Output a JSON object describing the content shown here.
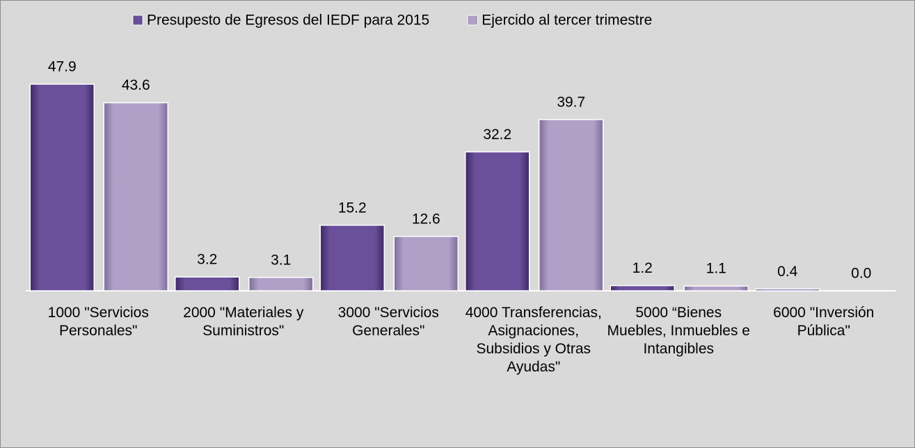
{
  "chart_data": {
    "type": "bar",
    "categories": [
      "1000 \"Servicios Personales\"",
      "2000 \"Materiales y Suministros\"",
      "3000 \"Servicios Generales\"",
      "4000 Transferencias, Asignaciones, Subsidios y Otras Ayudas\"",
      "5000 “Bienes Muebles, Inmuebles e Intangibles",
      "6000 \"Inversión Pública\""
    ],
    "series": [
      {
        "name": "Presupesto de Egresos del IEDF para 2015",
        "color": "#6a4f9b",
        "values": [
          47.9,
          3.2,
          15.2,
          32.2,
          1.2,
          0.4
        ],
        "value_labels": [
          "47.9",
          "3.2",
          "15.2",
          "32.2",
          "1.2",
          "0.4"
        ]
      },
      {
        "name": "Ejercido al tercer trimestre",
        "color": "#b0a0c8",
        "values": [
          43.6,
          3.1,
          12.6,
          39.7,
          1.1,
          0.0
        ],
        "value_labels": [
          "43.6",
          "3.1",
          "12.6",
          "39.7",
          "1.1",
          "0.0"
        ]
      }
    ]
  }
}
